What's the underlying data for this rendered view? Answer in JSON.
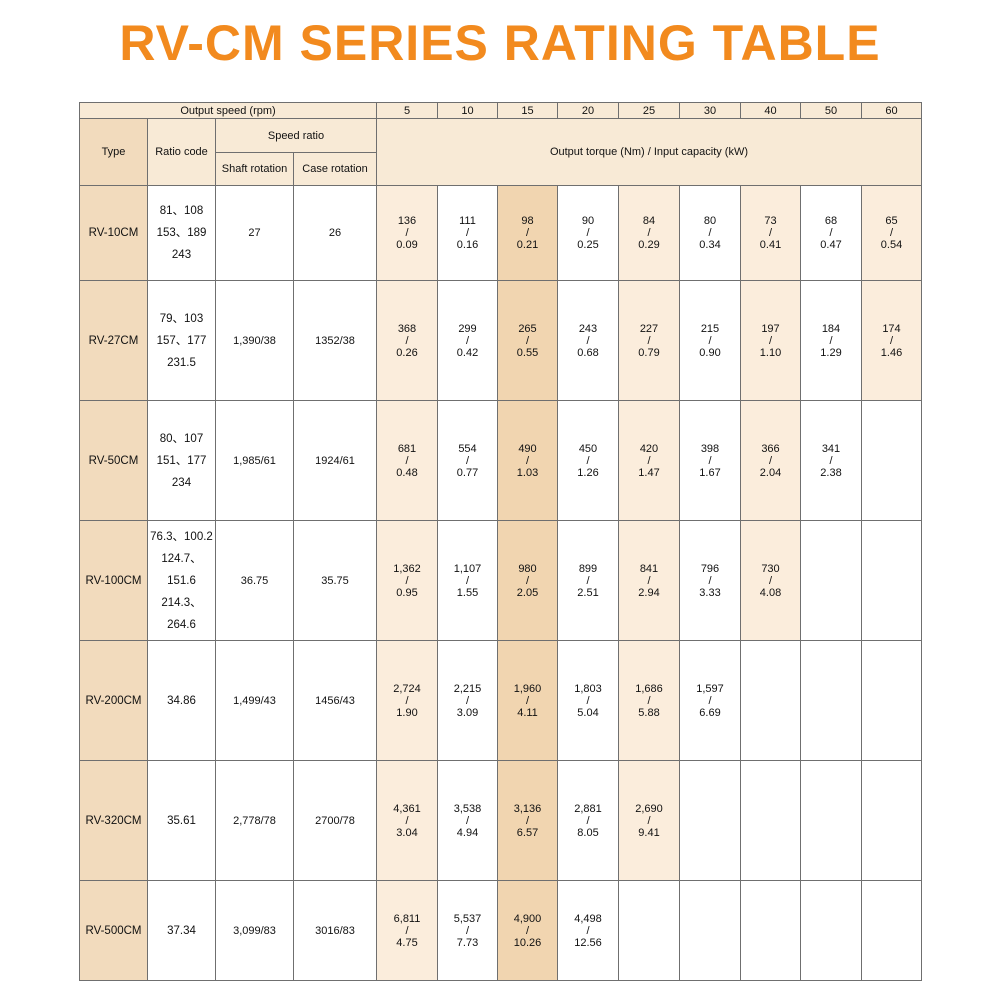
{
  "title": "RV-CM SERIES RATING TABLE",
  "table": {
    "header": {
      "output_speed": "Output speed (rpm)",
      "type": "Type",
      "ratio_code": "Ratio code",
      "speed_ratio": "Speed ratio",
      "shaft_rotation": "Shaft rotation",
      "case_rotation": "Case rotation",
      "output_torque": "Output torque (Nm) / Input capacity (kW)"
    },
    "speeds": [
      "5",
      "10",
      "15",
      "20",
      "25",
      "30",
      "40",
      "50",
      "60"
    ],
    "separator": "/",
    "rows": [
      {
        "type": "RV-10CM",
        "ratio_code": [
          "81、108",
          "153、189",
          "243"
        ],
        "shaft": "27",
        "case": "26",
        "cells": [
          [
            "136",
            "0.09"
          ],
          [
            "111",
            "0.16"
          ],
          [
            "98",
            "0.21"
          ],
          [
            "90",
            "0.25"
          ],
          [
            "84",
            "0.29"
          ],
          [
            "80",
            "0.34"
          ],
          [
            "73",
            "0.41"
          ],
          [
            "68",
            "0.47"
          ],
          [
            "65",
            "0.54"
          ]
        ]
      },
      {
        "type": "RV-27CM",
        "ratio_code": [
          "79、103",
          "157、177",
          "231.5"
        ],
        "shaft": "1,390/38",
        "case": "1352/38",
        "cells": [
          [
            "368",
            "0.26"
          ],
          [
            "299",
            "0.42"
          ],
          [
            "265",
            "0.55"
          ],
          [
            "243",
            "0.68"
          ],
          [
            "227",
            "0.79"
          ],
          [
            "215",
            "0.90"
          ],
          [
            "197",
            "1.10"
          ],
          [
            "184",
            "1.29"
          ],
          [
            "174",
            "1.46"
          ]
        ]
      },
      {
        "type": "RV-50CM",
        "ratio_code": [
          "80、107",
          "151、177",
          "234"
        ],
        "shaft": "1,985/61",
        "case": "1924/61",
        "cells": [
          [
            "681",
            "0.48"
          ],
          [
            "554",
            "0.77"
          ],
          [
            "490",
            "1.03"
          ],
          [
            "450",
            "1.26"
          ],
          [
            "420",
            "1.47"
          ],
          [
            "398",
            "1.67"
          ],
          [
            "366",
            "2.04"
          ],
          [
            "341",
            "2.38"
          ],
          null
        ]
      },
      {
        "type": "RV-100CM",
        "ratio_code": [
          "76.3、100.2",
          "124.7、151.6",
          "214.3、264.6"
        ],
        "shaft": "36.75",
        "case": "35.75",
        "cells": [
          [
            "1,362",
            "0.95"
          ],
          [
            "1,107",
            "1.55"
          ],
          [
            "980",
            "2.05"
          ],
          [
            "899",
            "2.51"
          ],
          [
            "841",
            "2.94"
          ],
          [
            "796",
            "3.33"
          ],
          [
            "730",
            "4.08"
          ],
          null,
          null
        ]
      },
      {
        "type": "RV-200CM",
        "ratio_code": [
          "34.86"
        ],
        "shaft": "1,499/43",
        "case": "1456/43",
        "cells": [
          [
            "2,724",
            "1.90"
          ],
          [
            "2,215",
            "3.09"
          ],
          [
            "1,960",
            "4.11"
          ],
          [
            "1,803",
            "5.04"
          ],
          [
            "1,686",
            "5.88"
          ],
          [
            "1,597",
            "6.69"
          ],
          null,
          null,
          null
        ]
      },
      {
        "type": "RV-320CM",
        "ratio_code": [
          "35.61"
        ],
        "shaft": "2,778/78",
        "case": "2700/78",
        "cells": [
          [
            "4,361",
            "3.04"
          ],
          [
            "3,538",
            "4.94"
          ],
          [
            "3,136",
            "6.57"
          ],
          [
            "2,881",
            "8.05"
          ],
          [
            "2,690",
            "9.41"
          ],
          null,
          null,
          null,
          null
        ]
      },
      {
        "type": "RV-500CM",
        "ratio_code": [
          "37.34"
        ],
        "shaft": "3,099/83",
        "case": "3016/83",
        "cells": [
          [
            "6,811",
            "4.75"
          ],
          [
            "5,537",
            "7.73"
          ],
          [
            "4,900",
            "10.26"
          ],
          [
            "4,498",
            "12.56"
          ],
          null,
          null,
          null,
          null,
          null
        ]
      }
    ]
  }
}
